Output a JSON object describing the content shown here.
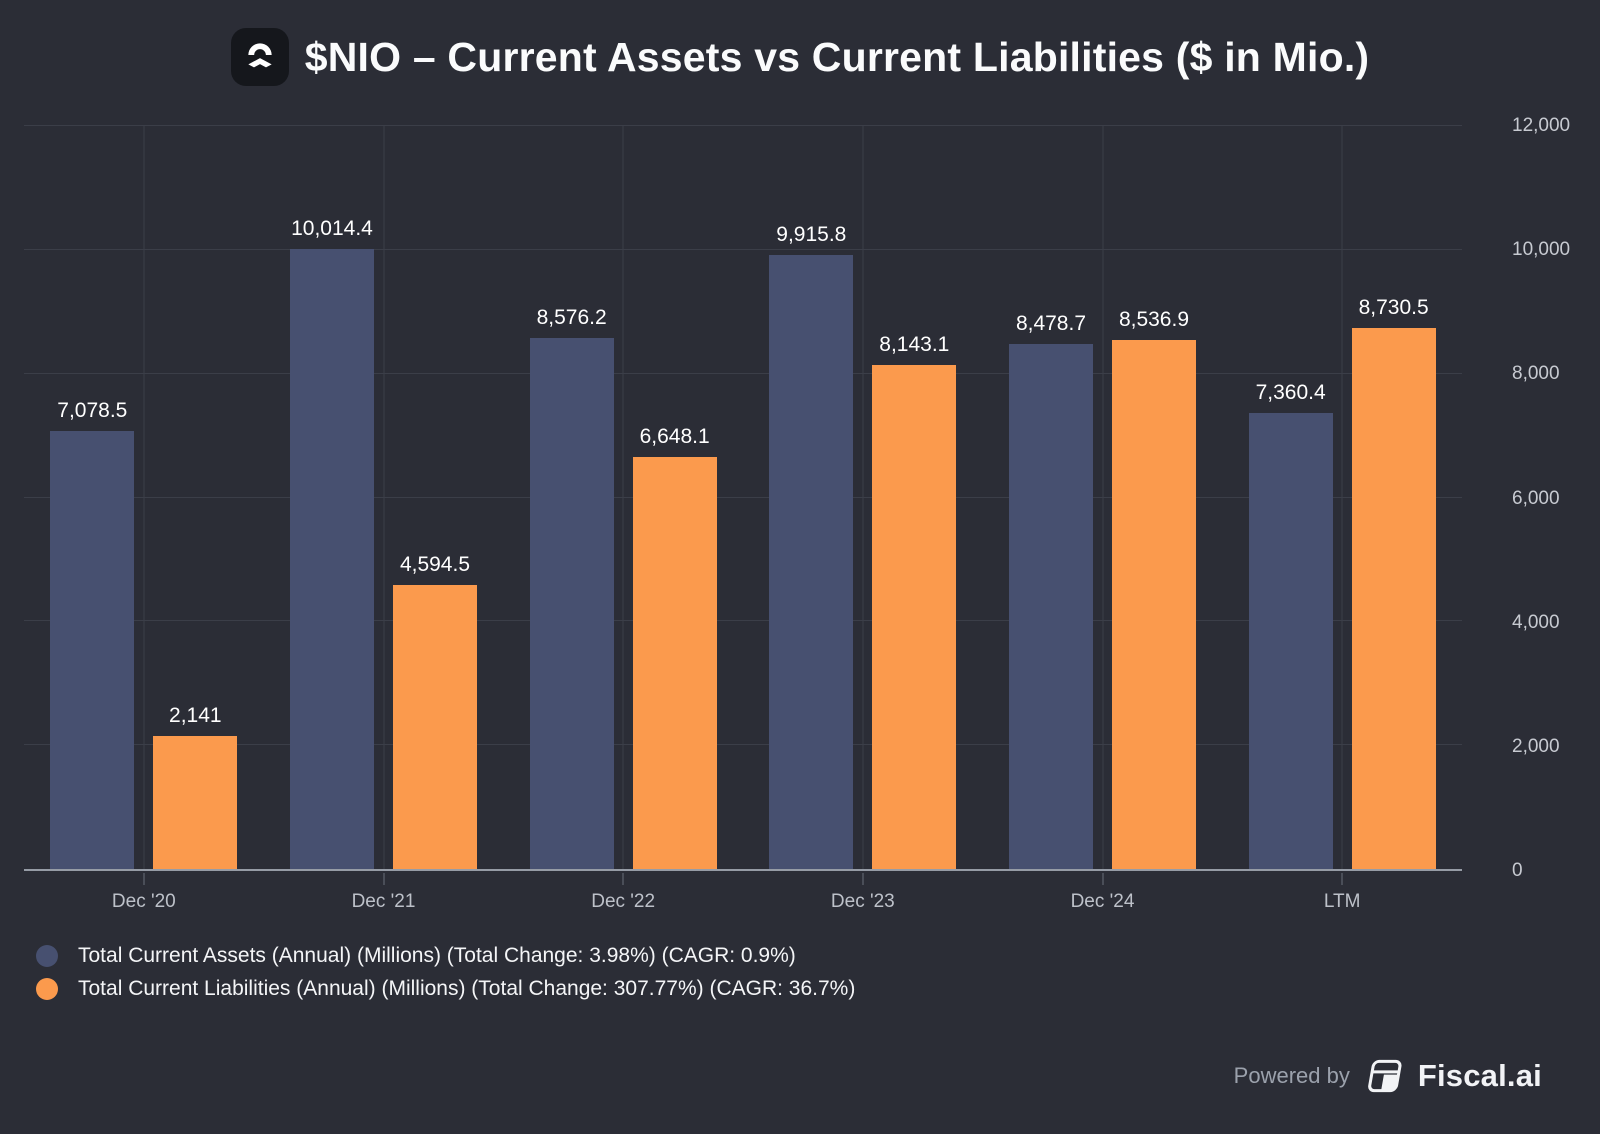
{
  "title_icon": "nio-logo",
  "chart_data": {
    "type": "bar",
    "title": "$NIO – Current Assets vs Current Liabilities ($ in Mio.)",
    "categories": [
      "Dec '20",
      "Dec '21",
      "Dec '22",
      "Dec '23",
      "Dec '24",
      "LTM"
    ],
    "series": [
      {
        "name": "Total Current Assets (Annual) (Millions) (Total Change: 3.98%) (CAGR: 0.9%)",
        "color": "#475070",
        "values": [
          7078.5,
          10014.4,
          8576.2,
          9915.8,
          8478.7,
          7360.4
        ],
        "labels": [
          "7,078.5",
          "10,014.4",
          "8,576.2",
          "9,915.8",
          "8,478.7",
          "7,360.4"
        ]
      },
      {
        "name": "Total Current Liabilities (Annual) (Millions) (Total Change: 307.77%) (CAGR: 36.7%)",
        "color": "#FB9A4D",
        "values": [
          2141,
          4594.5,
          6648.1,
          8143.1,
          8536.9,
          8730.5
        ],
        "labels": [
          "2,141",
          "4,594.5",
          "6,648.1",
          "8,143.1",
          "8,536.9",
          "8,730.5"
        ]
      }
    ],
    "ylim": [
      0,
      12000
    ],
    "y_ticks": [
      "0",
      "2,000",
      "4,000",
      "6,000",
      "8,000",
      "10,000",
      "12,000"
    ],
    "xlabel": "",
    "ylabel": "",
    "grid": true,
    "legend_position": "bottom-left",
    "colors": {
      "background": "#2B2D36",
      "gridline": "#3B3E48",
      "axis_line": "#969CA6",
      "assets_bar": "#475070",
      "liabilities_bar": "#FB9A4D",
      "data_label": "#FFFFFF",
      "tick_label": "#C7CAD1"
    }
  },
  "footer": {
    "powered_by": "Powered by",
    "brand": "Fiscal.ai"
  }
}
